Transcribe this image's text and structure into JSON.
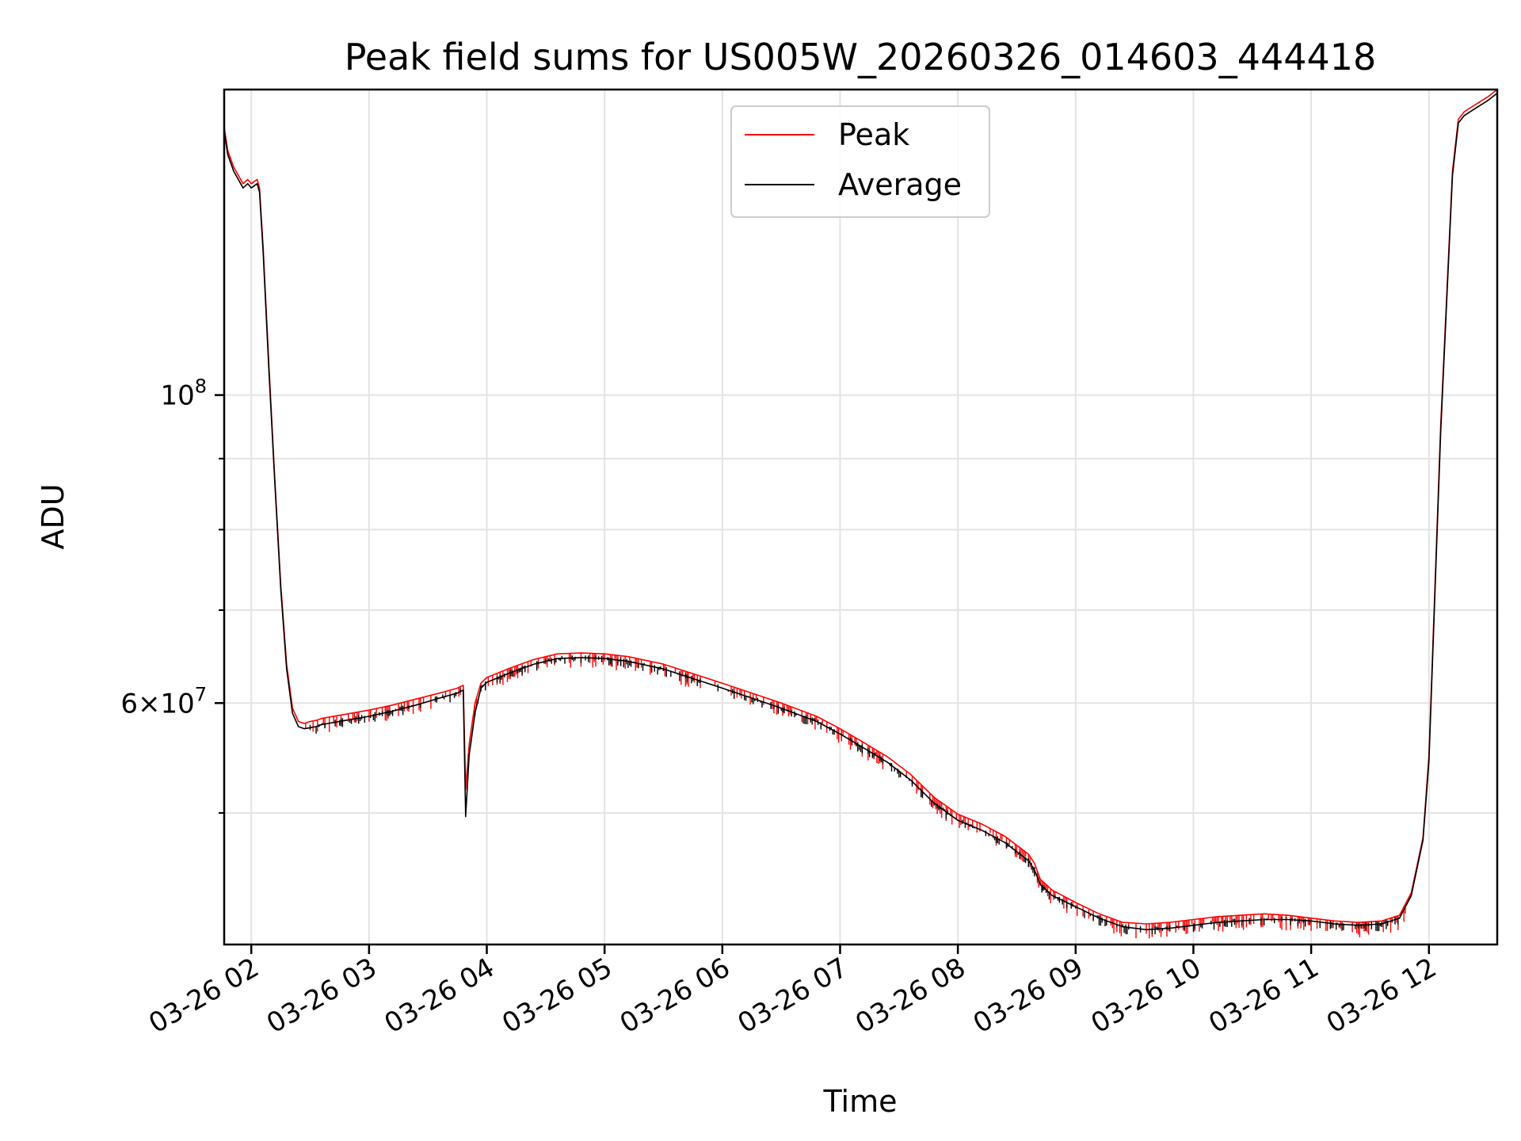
{
  "chart_data": {
    "type": "line",
    "title": "Peak field sums for US005W_20260326_014603_444418",
    "xlabel": "Time",
    "ylabel": "ADU",
    "yscale": "log",
    "x_unit": "hours since 03-26 00:00",
    "xlim": [
      1.77,
      12.58
    ],
    "ylim": [
      40200000,
      166000000
    ],
    "xticks": [
      {
        "value": 2,
        "label": "03-26 02"
      },
      {
        "value": 3,
        "label": "03-26 03"
      },
      {
        "value": 4,
        "label": "03-26 04"
      },
      {
        "value": 5,
        "label": "03-26 05"
      },
      {
        "value": 6,
        "label": "03-26 06"
      },
      {
        "value": 7,
        "label": "03-26 07"
      },
      {
        "value": 8,
        "label": "03-26 08"
      },
      {
        "value": 9,
        "label": "03-26 09"
      },
      {
        "value": 10,
        "label": "03-26 10"
      },
      {
        "value": 11,
        "label": "03-26 11"
      },
      {
        "value": 12,
        "label": "03-26 12"
      }
    ],
    "yticks_major": [
      {
        "value": 60000000,
        "base": "6×10",
        "exp": "7"
      },
      {
        "value": 100000000,
        "base": "10",
        "exp": "8"
      }
    ],
    "yticks_minor": [
      50000000,
      70000000,
      80000000,
      90000000
    ],
    "grid": true,
    "legend_position": "upper-center",
    "series": [
      {
        "name": "Peak",
        "color": "#ff0000",
        "x": [
          1.77,
          1.8,
          1.85,
          1.93,
          1.97,
          2.0,
          2.05,
          2.07,
          2.1,
          2.15,
          2.2,
          2.25,
          2.3,
          2.35,
          2.4,
          2.45,
          2.5,
          2.55,
          2.6,
          2.8,
          3.0,
          3.2,
          3.4,
          3.6,
          3.75,
          3.8,
          3.82,
          3.85,
          3.9,
          3.95,
          4.0,
          4.2,
          4.4,
          4.6,
          4.8,
          5.0,
          5.2,
          5.5,
          5.8,
          6.0,
          6.2,
          6.5,
          6.8,
          7.0,
          7.2,
          7.4,
          7.6,
          7.8,
          8.0,
          8.2,
          8.4,
          8.6,
          8.65,
          8.7,
          8.8,
          9.0,
          9.2,
          9.4,
          9.6,
          9.8,
          10.0,
          10.2,
          10.4,
          10.6,
          10.8,
          11.0,
          11.2,
          11.4,
          11.6,
          11.75,
          11.85,
          11.95,
          12.0,
          12.1,
          12.2,
          12.25,
          12.3,
          12.4,
          12.5,
          12.58
        ],
        "values": [
          156000000,
          150000000,
          146000000,
          142000000,
          143000000,
          142000000,
          143000000,
          141000000,
          128000000,
          105000000,
          87000000,
          73000000,
          64000000,
          59500000,
          58200000,
          58000000,
          58200000,
          58300000,
          58500000,
          58900000,
          59300000,
          59800000,
          60400000,
          61000000,
          61500000,
          61800000,
          52000000,
          56000000,
          60000000,
          62000000,
          62600000,
          63600000,
          64500000,
          65100000,
          65200000,
          65100000,
          64800000,
          64000000,
          62800000,
          62000000,
          61200000,
          60000000,
          58700000,
          57500000,
          56200000,
          54900000,
          53300000,
          51300000,
          49900000,
          49100000,
          48100000,
          46700000,
          46000000,
          44800000,
          44000000,
          43100000,
          42300000,
          41700000,
          41600000,
          41700000,
          41900000,
          42100000,
          42200000,
          42300000,
          42200000,
          42000000,
          41800000,
          41700000,
          41800000,
          42200000,
          43800000,
          48000000,
          55000000,
          95000000,
          145000000,
          158000000,
          160000000,
          162000000,
          164000000,
          166000000
        ]
      },
      {
        "name": "Average",
        "color": "#000000",
        "x": [
          1.77,
          1.8,
          1.85,
          1.93,
          1.97,
          2.0,
          2.05,
          2.07,
          2.1,
          2.15,
          2.2,
          2.25,
          2.3,
          2.35,
          2.4,
          2.45,
          2.5,
          2.55,
          2.6,
          2.8,
          3.0,
          3.2,
          3.4,
          3.6,
          3.75,
          3.8,
          3.82,
          3.85,
          3.9,
          3.95,
          4.0,
          4.2,
          4.4,
          4.6,
          4.8,
          5.0,
          5.2,
          5.5,
          5.8,
          6.0,
          6.2,
          6.5,
          6.8,
          7.0,
          7.2,
          7.4,
          7.6,
          7.8,
          8.0,
          8.2,
          8.4,
          8.6,
          8.65,
          8.7,
          8.8,
          9.0,
          9.2,
          9.4,
          9.6,
          9.8,
          10.0,
          10.2,
          10.4,
          10.6,
          10.8,
          11.0,
          11.2,
          11.4,
          11.6,
          11.75,
          11.85,
          11.95,
          12.0,
          12.1,
          12.2,
          12.25,
          12.3,
          12.4,
          12.5,
          12.58
        ],
        "values": [
          155000000,
          149000000,
          145000000,
          141000000,
          142000000,
          141000000,
          142000000,
          140000000,
          127000000,
          104000000,
          86500000,
          72500000,
          63500000,
          59000000,
          57700000,
          57500000,
          57600000,
          57700000,
          57900000,
          58300000,
          58700000,
          59200000,
          59800000,
          60500000,
          61000000,
          61300000,
          49700000,
          55000000,
          59000000,
          61500000,
          62100000,
          63100000,
          64000000,
          64600000,
          64700000,
          64600000,
          64300000,
          63500000,
          62300000,
          61500000,
          60700000,
          59500000,
          58200000,
          57000000,
          55700000,
          54400000,
          52800000,
          50800000,
          49400000,
          48600000,
          47600000,
          46200000,
          45500000,
          44400000,
          43600000,
          42800000,
          42000000,
          41400000,
          41200000,
          41300000,
          41500000,
          41700000,
          41800000,
          41900000,
          41900000,
          41800000,
          41600000,
          41500000,
          41600000,
          42000000,
          43600000,
          47800000,
          54500000,
          94000000,
          144000000,
          157000000,
          159000000,
          161000000,
          163000000,
          165000000
        ]
      }
    ]
  }
}
